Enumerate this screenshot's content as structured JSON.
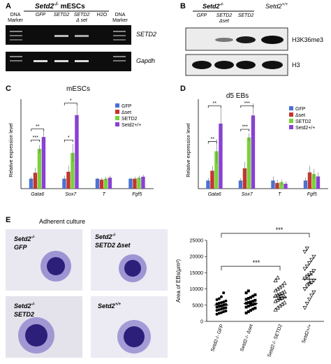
{
  "panelA": {
    "letter": "A",
    "genotype": "Setd2",
    "genotype_sup": "-/-",
    "cell": " mESCs",
    "lanes": [
      "DNA Marker",
      "GFP",
      "SETD2",
      "SETD2 Δ set",
      "H2O",
      "DNA Marker"
    ],
    "gel_labels": [
      "SETD2",
      "Gapdh"
    ]
  },
  "panelB": {
    "letter": "B",
    "genotype_ko": "Setd2",
    "genotype_ko_sup": "-/-",
    "genotype_wt": "Setd2",
    "genotype_wt_sup": "+/+",
    "lanes": [
      "GFP",
      "SETD2 Δset",
      "SETD2"
    ],
    "blot_labels": [
      "H3K36me3",
      "H3"
    ]
  },
  "panelC": {
    "letter": "C",
    "title": "mESCs",
    "ylabel": "Relative expression level",
    "sig": [
      "***",
      "**",
      "*",
      "*"
    ]
  },
  "panelD": {
    "letter": "D",
    "title": "d5 EBs",
    "ylabel": "Relative expression level",
    "sig": [
      "**",
      "**",
      "***",
      "***"
    ]
  },
  "panelE": {
    "letter": "E",
    "subtitle": "Adherent culture",
    "images": [
      {
        "line1": "Setd2",
        "sup": "-/-",
        "line2": "GFP"
      },
      {
        "line1": "Setd2",
        "sup": "-/-",
        "line2": "SETD2  Δset"
      },
      {
        "line1": "Setd2",
        "sup": "-/-",
        "line2": "SETD2"
      },
      {
        "line1": "Setd2",
        "sup": "+/+",
        "line2": ""
      }
    ],
    "sig": [
      "***",
      "***"
    ]
  },
  "colors": {
    "gfp": "#4a72d6",
    "dset": "#c6342c",
    "setd2": "#7ad13a",
    "wt": "#8a3fd8",
    "stain": "#3b2a8f"
  },
  "chart_data": [
    {
      "type": "bar",
      "panel": "C",
      "title": "mESCs",
      "ylabel": "Relative expression level",
      "categories": [
        "Gata6",
        "Sox7",
        "T",
        "Fgf5"
      ],
      "series": [
        {
          "name": "GFP",
          "values": [
            1.0,
            1.0,
            1.0,
            1.0
          ]
        },
        {
          "name": "Δset",
          "values": [
            1.6,
            1.7,
            0.9,
            1.0
          ]
        },
        {
          "name": "SETD2",
          "values": [
            4.0,
            3.6,
            1.0,
            1.1
          ]
        },
        {
          "name": "Setd2+/+",
          "values": [
            5.2,
            7.4,
            1.1,
            1.2
          ]
        }
      ],
      "errors": [
        [
          0.2,
          0.3,
          0.1,
          0.1
        ],
        [
          0.5,
          0.6,
          0.2,
          0.2
        ],
        [
          0.4,
          0.9,
          0.2,
          0.2
        ],
        [
          0.6,
          1.2,
          0.2,
          0.2
        ]
      ],
      "ylim": [
        0,
        9
      ]
    },
    {
      "type": "bar",
      "panel": "D",
      "title": "d5 EBs",
      "ylabel": "Relative expression level",
      "categories": [
        "Gata6",
        "Sox7",
        "T",
        "Fgf5"
      ],
      "series": [
        {
          "name": "GFP",
          "values": [
            1.0,
            1.0,
            1.0,
            1.0
          ]
        },
        {
          "name": "Δset",
          "values": [
            2.2,
            2.5,
            0.7,
            2.0
          ]
        },
        {
          "name": "SETD2",
          "values": [
            4.6,
            6.3,
            0.8,
            1.8
          ]
        },
        {
          "name": "Setd2+/+",
          "values": [
            8.0,
            9.0,
            0.6,
            1.5
          ]
        }
      ],
      "errors": [
        [
          0.3,
          0.3,
          0.5,
          0.4
        ],
        [
          0.6,
          0.8,
          0.4,
          0.8
        ],
        [
          1.5,
          0.5,
          0.3,
          0.6
        ],
        [
          2.0,
          1.5,
          0.3,
          0.5
        ]
      ],
      "ylim": [
        0,
        11
      ]
    },
    {
      "type": "scatter",
      "panel": "E",
      "ylabel": "Area of EBs(μm²)",
      "yticks": [
        "0",
        "5000",
        "10000",
        "15000",
        "20000",
        "25000"
      ],
      "ylim": [
        0,
        25000
      ],
      "categories": [
        "Setd2-/- GFP",
        "Setd2-/- Δset",
        "Setd2-/- SETD2",
        "Setd2+/+"
      ],
      "means": [
        5000,
        5500,
        7500,
        13000
      ],
      "sem": [
        600,
        600,
        700,
        1300
      ],
      "points": [
        [
          2200,
          2500,
          2700,
          3000,
          3200,
          3400,
          3600,
          3800,
          4000,
          4200,
          4400,
          4600,
          4800,
          5000,
          5200,
          5400,
          5600,
          5800,
          6000,
          6300,
          6700,
          7000,
          7600,
          8800
        ],
        [
          2600,
          3000,
          3400,
          3800,
          4100,
          4400,
          4700,
          5000,
          5200,
          5400,
          5600,
          5800,
          6000,
          6200,
          6500,
          6800,
          7100,
          7400,
          7800,
          8200,
          8800,
          9400
        ],
        [
          3600,
          4200,
          4800,
          5300,
          5800,
          6200,
          6600,
          7000,
          7300,
          7600,
          7900,
          8200,
          8500,
          8800,
          9100,
          9500,
          10000,
          10500,
          11000,
          11800,
          12600,
          13500
        ],
        [
          4200,
          5500,
          6800,
          8000,
          9000,
          10000,
          10800,
          11500,
          12000,
          12600,
          13200,
          13800,
          14400,
          15000,
          15600,
          16200,
          17000,
          18000,
          19000,
          20000,
          21500,
          22500
        ]
      ]
    }
  ],
  "legend": [
    "GFP",
    "Δset",
    "SETD2",
    "Setd2+/+"
  ]
}
